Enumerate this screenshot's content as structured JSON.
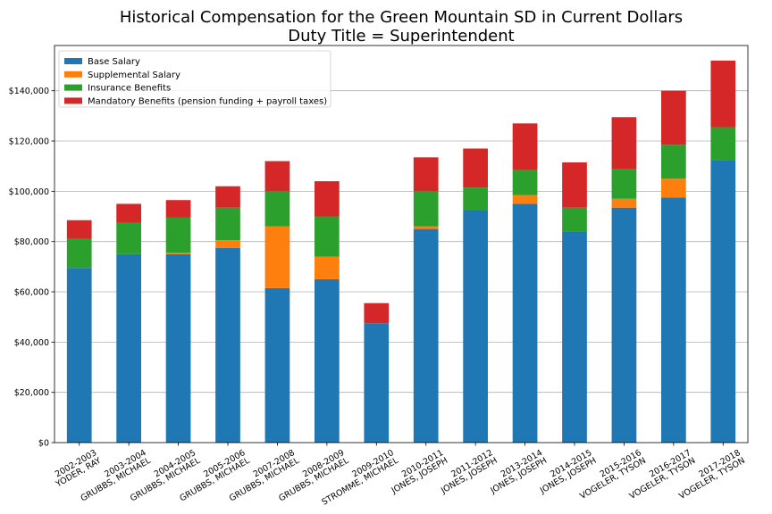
{
  "chart_data": {
    "type": "bar",
    "stacked": true,
    "title": [
      "Historical Compensation for the Green Mountain SD in Current Dollars",
      "Duty Title = Superintendent"
    ],
    "xlabel": "",
    "ylabel": "",
    "ylim": [
      0,
      158000
    ],
    "yticks": [
      0,
      20000,
      40000,
      60000,
      80000,
      100000,
      120000,
      140000
    ],
    "ytick_labels": [
      "$0",
      "$20,000",
      "$40,000",
      "$60,000",
      "$80,000",
      "$100,000",
      "$120,000",
      "$140,000"
    ],
    "grid": "horizontal",
    "legend_position": "top-left",
    "categories": [
      [
        "2002-2003",
        "YODER, RAY"
      ],
      [
        "2003-2004",
        "GRUBBS, MICHAEL"
      ],
      [
        "2004-2005",
        "GRUBBS, MICHAEL"
      ],
      [
        "2005-2006",
        "GRUBBS, MICHAEL"
      ],
      [
        "2007-2008",
        "GRUBBS, MICHAEL"
      ],
      [
        "2008-2009",
        "GRUBBS, MICHAEL"
      ],
      [
        "2009-2010",
        "STROMME, MICHAEL"
      ],
      [
        "2010-2011",
        "JONES, JOSEPH"
      ],
      [
        "2011-2012",
        "JONES, JOSEPH"
      ],
      [
        "2013-2014",
        "JONES, JOSEPH"
      ],
      [
        "2014-2015",
        "JONES, JOSEPH"
      ],
      [
        "2015-2016",
        "VOGELER, TYSON"
      ],
      [
        "2016-2017",
        "VOGELER, TYSON"
      ],
      [
        "2017-2018",
        "VOGELER, TYSON"
      ]
    ],
    "series": [
      {
        "name": "Base Salary",
        "color": "#1f77b4",
        "values": [
          69500,
          75000,
          75000,
          77500,
          61500,
          65000,
          47500,
          85000,
          92500,
          95000,
          84000,
          93500,
          97500,
          112500
        ]
      },
      {
        "name": "Supplemental Salary",
        "color": "#ff7f0e",
        "values": [
          0,
          0,
          500,
          3000,
          24500,
          9000,
          0,
          1000,
          0,
          3500,
          0,
          3500,
          7500,
          0
        ]
      },
      {
        "name": "Insurance Benefits",
        "color": "#2ca02c",
        "values": [
          11500,
          12500,
          14000,
          13000,
          14000,
          16000,
          0,
          14000,
          9000,
          10000,
          9500,
          12000,
          13500,
          13000
        ]
      },
      {
        "name": "Mandatory Benefits (pension funding + payroll taxes)",
        "color": "#d62728",
        "values": [
          7500,
          7500,
          7000,
          8500,
          12000,
          14000,
          8000,
          13500,
          15500,
          18500,
          18000,
          20500,
          21500,
          26500
        ]
      }
    ]
  }
}
